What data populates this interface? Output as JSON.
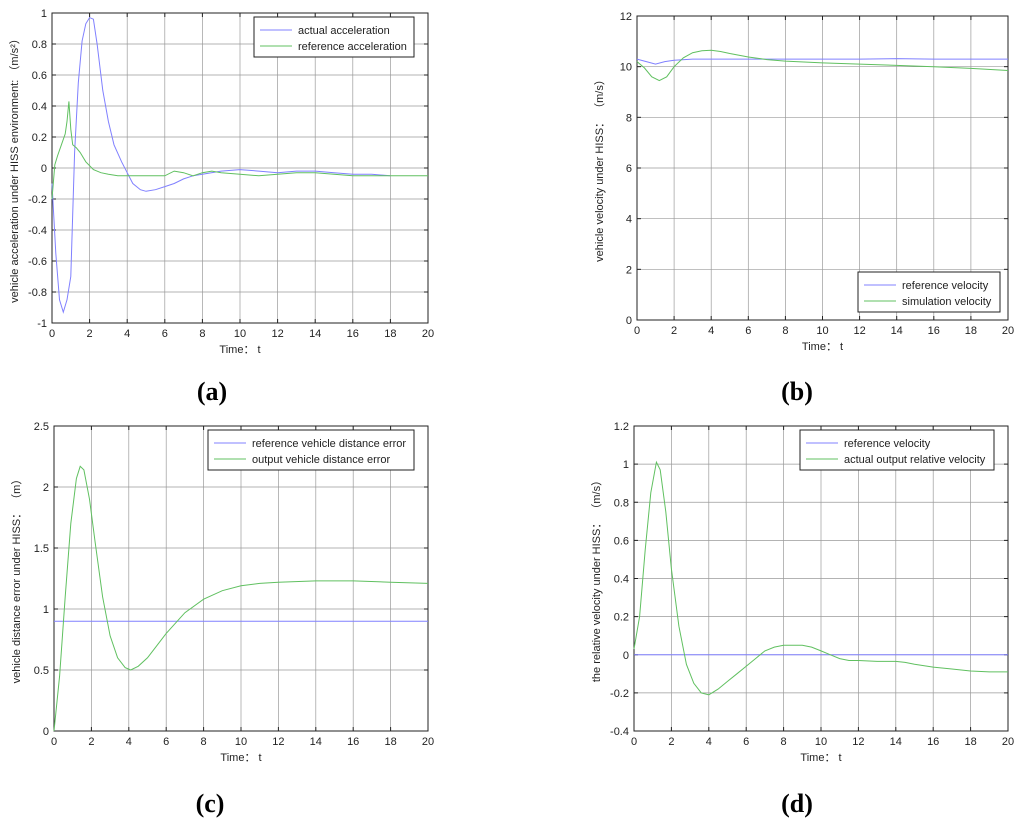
{
  "panels": [
    {
      "label": "(a)",
      "chart_data": {
        "type": "line",
        "xlabel": "Time： t",
        "ylabel": "vehicle acceleration under HISS environment: （m/s²）",
        "xlim": [
          0,
          20
        ],
        "ylim": [
          -1,
          1
        ],
        "xticks": [
          0,
          2,
          4,
          6,
          8,
          10,
          12,
          14,
          16,
          18,
          20
        ],
        "yticks": [
          -1,
          -0.8,
          -0.6,
          -0.4,
          -0.2,
          0,
          0.2,
          0.4,
          0.6,
          0.8,
          1
        ],
        "ytick_labels": [
          "-1",
          "-0.8",
          "-0.6",
          "-0.4",
          "-0.2",
          "0",
          "0.2",
          "0.4",
          "0.6",
          "0.8",
          "1"
        ],
        "grid": true,
        "legend": "top-right",
        "series": [
          {
            "name": "actual acceleration",
            "color": "#8080ff",
            "points": [
              [
                0,
                -0.1
              ],
              [
                0.2,
                -0.55
              ],
              [
                0.4,
                -0.85
              ],
              [
                0.6,
                -0.93
              ],
              [
                0.8,
                -0.85
              ],
              [
                1.0,
                -0.7
              ],
              [
                1.2,
                0.1
              ],
              [
                1.4,
                0.55
              ],
              [
                1.6,
                0.82
              ],
              [
                1.8,
                0.93
              ],
              [
                2.0,
                0.97
              ],
              [
                2.2,
                0.96
              ],
              [
                2.4,
                0.8
              ],
              [
                2.7,
                0.5
              ],
              [
                3.0,
                0.3
              ],
              [
                3.3,
                0.15
              ],
              [
                3.7,
                0.04
              ],
              [
                4.0,
                -0.03
              ],
              [
                4.3,
                -0.1
              ],
              [
                4.7,
                -0.14
              ],
              [
                5.0,
                -0.15
              ],
              [
                5.5,
                -0.14
              ],
              [
                6.0,
                -0.12
              ],
              [
                6.5,
                -0.1
              ],
              [
                7.0,
                -0.07
              ],
              [
                7.5,
                -0.05
              ],
              [
                8.0,
                -0.04
              ],
              [
                9.0,
                -0.02
              ],
              [
                10.0,
                -0.01
              ],
              [
                11.0,
                -0.02
              ],
              [
                12.0,
                -0.03
              ],
              [
                13.0,
                -0.02
              ],
              [
                14.0,
                -0.02
              ],
              [
                15.0,
                -0.03
              ],
              [
                16.0,
                -0.04
              ],
              [
                17.0,
                -0.04
              ],
              [
                18.0,
                -0.05
              ]
            ]
          },
          {
            "name": "reference acceleration",
            "color": "#60c060",
            "points": [
              [
                0,
                -0.2
              ],
              [
                0.15,
                0.02
              ],
              [
                0.3,
                0.08
              ],
              [
                0.5,
                0.15
              ],
              [
                0.7,
                0.22
              ],
              [
                0.8,
                0.3
              ],
              [
                0.9,
                0.43
              ],
              [
                1.0,
                0.25
              ],
              [
                1.1,
                0.15
              ],
              [
                1.3,
                0.13
              ],
              [
                1.5,
                0.1
              ],
              [
                1.8,
                0.04
              ],
              [
                2.2,
                -0.01
              ],
              [
                2.6,
                -0.03
              ],
              [
                3.0,
                -0.04
              ],
              [
                3.5,
                -0.05
              ],
              [
                4.0,
                -0.05
              ],
              [
                5.0,
                -0.05
              ],
              [
                6.0,
                -0.05
              ],
              [
                6.5,
                -0.02
              ],
              [
                7.0,
                -0.03
              ],
              [
                7.5,
                -0.05
              ],
              [
                8.0,
                -0.03
              ],
              [
                8.5,
                -0.02
              ],
              [
                9.0,
                -0.03
              ],
              [
                10.0,
                -0.04
              ],
              [
                11.0,
                -0.05
              ],
              [
                12.0,
                -0.04
              ],
              [
                13.0,
                -0.03
              ],
              [
                14.0,
                -0.03
              ],
              [
                15.0,
                -0.04
              ],
              [
                16.0,
                -0.05
              ],
              [
                17.0,
                -0.05
              ],
              [
                18.0,
                -0.05
              ],
              [
                19.0,
                -0.05
              ],
              [
                20.0,
                -0.05
              ]
            ]
          }
        ]
      }
    },
    {
      "label": "(b)",
      "chart_data": {
        "type": "line",
        "xlabel": "Time： t",
        "ylabel": "vehicle velocity under HISS： （m/s）",
        "xlim": [
          0,
          20
        ],
        "ylim": [
          0,
          12
        ],
        "xticks": [
          0,
          2,
          4,
          6,
          8,
          10,
          12,
          14,
          16,
          18,
          20
        ],
        "yticks": [
          0,
          2,
          4,
          6,
          8,
          10,
          12
        ],
        "ytick_labels": [
          "0",
          "2",
          "4",
          "6",
          "8",
          "10",
          "12"
        ],
        "grid": true,
        "legend": "bottom-right",
        "series": [
          {
            "name": "reference velocity",
            "color": "#8080ff",
            "points": [
              [
                0,
                10.3
              ],
              [
                0.5,
                10.2
              ],
              [
                1.0,
                10.1
              ],
              [
                1.5,
                10.2
              ],
              [
                2.0,
                10.25
              ],
              [
                3.0,
                10.3
              ],
              [
                4.0,
                10.3
              ],
              [
                6.0,
                10.3
              ],
              [
                8.0,
                10.3
              ],
              [
                10.0,
                10.3
              ],
              [
                12.0,
                10.3
              ],
              [
                14.0,
                10.32
              ],
              [
                16.0,
                10.3
              ],
              [
                18.0,
                10.3
              ],
              [
                20.0,
                10.3
              ]
            ]
          },
          {
            "name": "simulation velocity",
            "color": "#60c060",
            "points": [
              [
                0,
                10.2
              ],
              [
                0.4,
                9.95
              ],
              [
                0.8,
                9.6
              ],
              [
                1.2,
                9.45
              ],
              [
                1.6,
                9.6
              ],
              [
                2.0,
                10.0
              ],
              [
                2.5,
                10.35
              ],
              [
                3.0,
                10.55
              ],
              [
                3.5,
                10.63
              ],
              [
                4.0,
                10.65
              ],
              [
                4.5,
                10.6
              ],
              [
                5.0,
                10.52
              ],
              [
                6.0,
                10.38
              ],
              [
                7.0,
                10.28
              ],
              [
                8.0,
                10.22
              ],
              [
                10.0,
                10.15
              ],
              [
                12.0,
                10.1
              ],
              [
                14.0,
                10.05
              ],
              [
                16.0,
                10.0
              ],
              [
                18.0,
                9.93
              ],
              [
                20.0,
                9.85
              ]
            ]
          }
        ]
      }
    },
    {
      "label": "(c)",
      "chart_data": {
        "type": "line",
        "xlabel": "Time： t",
        "ylabel": "vehicle distance error under HISS： （m）",
        "xlim": [
          0,
          20
        ],
        "ylim": [
          0,
          2.5
        ],
        "xticks": [
          0,
          2,
          4,
          6,
          8,
          10,
          12,
          14,
          16,
          18,
          20
        ],
        "yticks": [
          0,
          0.5,
          1,
          1.5,
          2,
          2.5
        ],
        "ytick_labels": [
          "0",
          "0.5",
          "1",
          "1.5",
          "2",
          "2.5"
        ],
        "grid": true,
        "legend": "top-right",
        "series": [
          {
            "name": "reference vehicle distance error",
            "color": "#8080ff",
            "points": [
              [
                0,
                0.9
              ],
              [
                20,
                0.9
              ]
            ]
          },
          {
            "name": "output vehicle distance error",
            "color": "#60c060",
            "points": [
              [
                0,
                0.0
              ],
              [
                0.3,
                0.45
              ],
              [
                0.6,
                1.1
              ],
              [
                0.9,
                1.7
              ],
              [
                1.2,
                2.07
              ],
              [
                1.4,
                2.17
              ],
              [
                1.6,
                2.14
              ],
              [
                1.9,
                1.9
              ],
              [
                2.2,
                1.55
              ],
              [
                2.6,
                1.1
              ],
              [
                3.0,
                0.78
              ],
              [
                3.4,
                0.6
              ],
              [
                3.8,
                0.52
              ],
              [
                4.1,
                0.5
              ],
              [
                4.5,
                0.53
              ],
              [
                5.0,
                0.6
              ],
              [
                5.5,
                0.7
              ],
              [
                6.0,
                0.8
              ],
              [
                7.0,
                0.97
              ],
              [
                8.0,
                1.08
              ],
              [
                9.0,
                1.15
              ],
              [
                10.0,
                1.19
              ],
              [
                11.0,
                1.21
              ],
              [
                12.0,
                1.22
              ],
              [
                14.0,
                1.23
              ],
              [
                16.0,
                1.23
              ],
              [
                18.0,
                1.22
              ],
              [
                20.0,
                1.21
              ]
            ]
          }
        ]
      }
    },
    {
      "label": "(d)",
      "chart_data": {
        "type": "line",
        "xlabel": "Time： t",
        "ylabel": "the relative velocity under HISS： （m/s）",
        "xlim": [
          0,
          20
        ],
        "ylim": [
          -0.4,
          1.2
        ],
        "xticks": [
          0,
          2,
          4,
          6,
          8,
          10,
          12,
          14,
          16,
          18,
          20
        ],
        "yticks": [
          -0.4,
          -0.2,
          0,
          0.2,
          0.4,
          0.6,
          0.8,
          1,
          1.2
        ],
        "ytick_labels": [
          "-0.4",
          "-0.2",
          "0",
          "0.2",
          "0.4",
          "0.6",
          "0.8",
          "1",
          "1.2"
        ],
        "grid": true,
        "legend": "top-right",
        "series": [
          {
            "name": "reference velocity",
            "color": "#8080ff",
            "points": [
              [
                0,
                0
              ],
              [
                20,
                0
              ]
            ]
          },
          {
            "name": "actual output relative velocity",
            "color": "#60c060",
            "points": [
              [
                0,
                0.03
              ],
              [
                0.3,
                0.2
              ],
              [
                0.6,
                0.55
              ],
              [
                0.9,
                0.85
              ],
              [
                1.2,
                1.01
              ],
              [
                1.4,
                0.97
              ],
              [
                1.7,
                0.75
              ],
              [
                2.0,
                0.45
              ],
              [
                2.4,
                0.15
              ],
              [
                2.8,
                -0.05
              ],
              [
                3.2,
                -0.15
              ],
              [
                3.6,
                -0.2
              ],
              [
                4.0,
                -0.21
              ],
              [
                4.5,
                -0.18
              ],
              [
                5.0,
                -0.14
              ],
              [
                5.5,
                -0.1
              ],
              [
                6.0,
                -0.06
              ],
              [
                6.5,
                -0.02
              ],
              [
                7.0,
                0.02
              ],
              [
                7.5,
                0.04
              ],
              [
                8.0,
                0.05
              ],
              [
                8.5,
                0.05
              ],
              [
                9.0,
                0.05
              ],
              [
                9.5,
                0.04
              ],
              [
                10.0,
                0.02
              ],
              [
                10.5,
                0.0
              ],
              [
                11.0,
                -0.02
              ],
              [
                11.5,
                -0.03
              ],
              [
                12.0,
                -0.03
              ],
              [
                13.0,
                -0.035
              ],
              [
                14.0,
                -0.035
              ],
              [
                14.5,
                -0.04
              ],
              [
                15.0,
                -0.05
              ],
              [
                16.0,
                -0.065
              ],
              [
                17.0,
                -0.075
              ],
              [
                18.0,
                -0.085
              ],
              [
                19.0,
                -0.09
              ],
              [
                20.0,
                -0.09
              ]
            ]
          }
        ]
      }
    }
  ]
}
